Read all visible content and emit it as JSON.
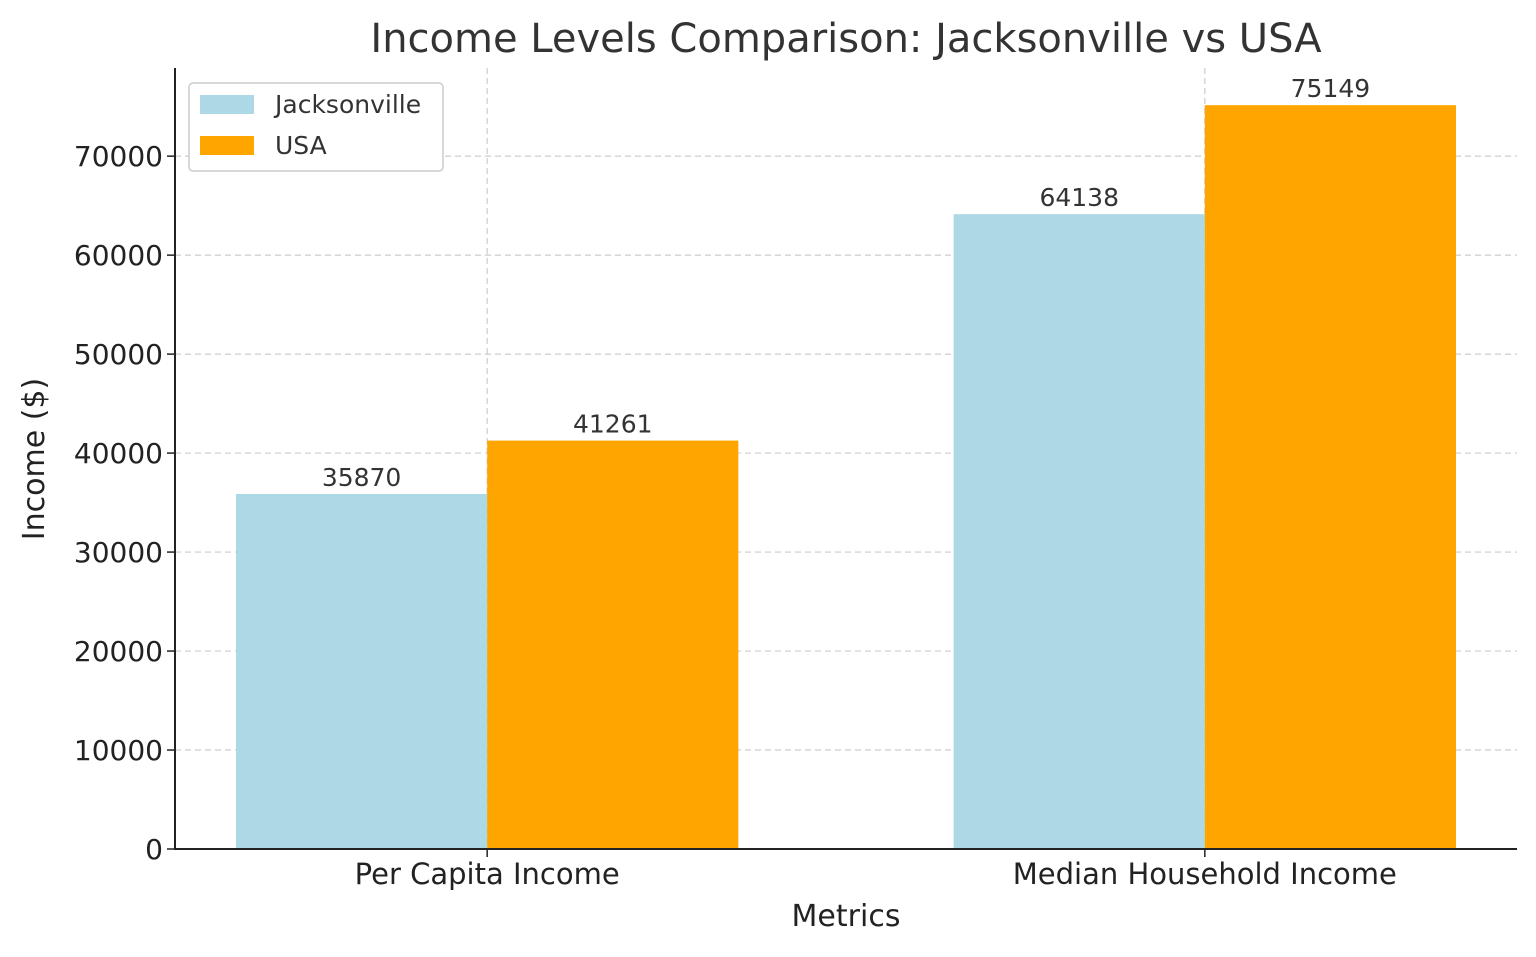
{
  "chart_data": {
    "type": "bar",
    "title": "Income Levels Comparison: Jacksonville vs USA",
    "xlabel": "Metrics",
    "ylabel": "Income ($)",
    "categories": [
      "Per Capita Income",
      "Median Household Income"
    ],
    "series": [
      {
        "name": "Jacksonville",
        "values": [
          35870,
          64138
        ],
        "color": "#add8e6"
      },
      {
        "name": "USA",
        "values": [
          41261,
          75149
        ],
        "color": "#ffa500"
      }
    ],
    "ylim": [
      0,
      78906
    ],
    "yticks": [
      0,
      10000,
      20000,
      30000,
      40000,
      50000,
      60000,
      70000
    ],
    "grid": true,
    "legend": "top-left",
    "data_labels": true
  }
}
